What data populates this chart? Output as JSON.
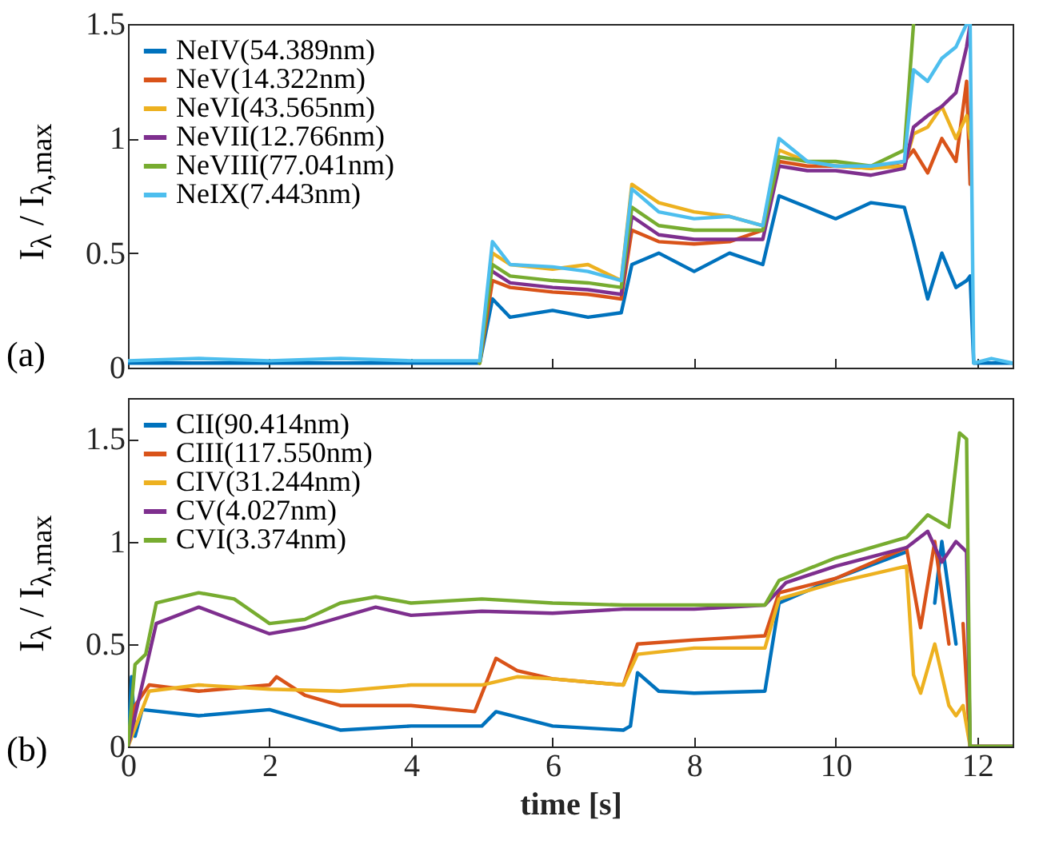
{
  "chart_data": [
    {
      "type": "line",
      "ylabel": "I$_{λ}$ / I$_{λ,max}$",
      "annotations": [
        "(a)"
      ],
      "legend": "top left",
      "grid": false,
      "tick_labels": "y",
      "line_style": "solid",
      "xlim": [
        0,
        12.5
      ],
      "xticks": [
        0,
        2,
        4,
        6,
        8,
        10,
        12
      ],
      "ylim": [
        0,
        1.5
      ],
      "yticks": [
        0,
        0.5,
        1,
        1.5
      ],
      "x": [
        0,
        1,
        2,
        3,
        4,
        4.97,
        5.15,
        5.4,
        6,
        6.5,
        6.97,
        7.12,
        7.5,
        8,
        8.5,
        8.97,
        9.2,
        9.6,
        10,
        10.5,
        10.97,
        11.1,
        11.3,
        11.5,
        11.7,
        11.85,
        11.9,
        11.95,
        12.2,
        12.5
      ],
      "series": [
        {
          "name": "NeIV(54.389nm)",
          "color": "#0072bd",
          "values": [
            0.02,
            0.02,
            0.02,
            0.02,
            0.02,
            0.02,
            0.3,
            0.22,
            0.25,
            0.22,
            0.24,
            0.45,
            0.5,
            0.42,
            0.5,
            0.45,
            0.75,
            0.7,
            0.65,
            0.72,
            0.7,
            0.55,
            0.3,
            0.5,
            0.35,
            0.38,
            0.4,
            0.02,
            0.02,
            0.02
          ]
        },
        {
          "name": "NeV(14.322nm)",
          "color": "#d95319",
          "values": [
            null,
            null,
            null,
            null,
            null,
            0.02,
            0.38,
            0.35,
            0.33,
            0.32,
            0.3,
            0.6,
            0.55,
            0.54,
            0.55,
            0.6,
            0.9,
            0.88,
            0.88,
            0.87,
            0.9,
            0.95,
            0.85,
            1.0,
            0.9,
            1.25,
            0.8,
            null,
            null,
            null
          ]
        },
        {
          "name": "NeVI(43.565nm)",
          "color": "#edb120",
          "values": [
            null,
            null,
            null,
            null,
            null,
            0.02,
            0.5,
            0.45,
            0.43,
            0.45,
            0.38,
            0.8,
            0.72,
            0.68,
            0.66,
            0.62,
            0.95,
            0.9,
            0.88,
            0.87,
            0.88,
            1.02,
            1.05,
            1.14,
            1.0,
            1.1,
            1.0,
            null,
            null,
            null
          ]
        },
        {
          "name": "NeVII(12.766nm)",
          "color": "#7e2f8e",
          "values": [
            null,
            null,
            null,
            null,
            null,
            null,
            0.42,
            0.37,
            0.35,
            0.34,
            0.32,
            0.66,
            0.58,
            0.56,
            0.56,
            0.56,
            0.88,
            0.86,
            0.86,
            0.84,
            0.87,
            1.05,
            1.1,
            1.14,
            1.2,
            1.4,
            1.5,
            null,
            null,
            null
          ]
        },
        {
          "name": "NeVIII(77.041nm)",
          "color": "#77ac30",
          "values": [
            null,
            null,
            null,
            null,
            null,
            0.02,
            0.45,
            0.4,
            0.38,
            0.37,
            0.35,
            0.7,
            0.62,
            0.6,
            0.6,
            0.6,
            0.92,
            0.9,
            0.9,
            0.88,
            0.95,
            1.5,
            null,
            null,
            null,
            null,
            null,
            null,
            null,
            null
          ]
        },
        {
          "name": "NeIX(7.443nm)",
          "color": "#4dbeee",
          "values": [
            0.03,
            0.04,
            0.03,
            0.04,
            0.03,
            0.03,
            0.55,
            0.45,
            0.44,
            0.42,
            0.38,
            0.78,
            0.68,
            0.65,
            0.66,
            0.62,
            1.0,
            0.9,
            0.88,
            0.88,
            0.9,
            1.3,
            1.25,
            1.35,
            1.4,
            1.5,
            1.5,
            0.02,
            0.04,
            0.02
          ]
        }
      ]
    },
    {
      "type": "line",
      "xlabel": "time [s]",
      "ylabel": "I$_{λ}$ / I$_{λ,max}$",
      "annotations": [
        "(b)"
      ],
      "legend": "top left",
      "grid": false,
      "line_style": "solid",
      "xlim": [
        0,
        12.5
      ],
      "xticks": [
        0,
        2,
        4,
        6,
        8,
        10,
        12
      ],
      "ylim": [
        0,
        1.7
      ],
      "yticks": [
        0,
        0.5,
        1,
        1.5
      ],
      "series": [
        {
          "name": "CII(90.414nm)",
          "color": "#0072bd",
          "x": [
            0,
            0.05,
            0.1,
            0.2,
            1,
            2,
            3,
            4,
            5,
            5.2,
            6,
            7,
            7.1,
            7.2,
            7.5,
            8,
            9,
            9.2,
            10,
            11,
            11.25,
            11.4,
            11.5,
            11.7,
            11.8,
            11.9,
            12.5
          ],
          "values": [
            0,
            0.34,
            0.05,
            0.18,
            0.15,
            0.18,
            0.08,
            0.1,
            0.1,
            0.17,
            0.1,
            0.08,
            0.1,
            0.36,
            0.27,
            0.26,
            0.27,
            0.7,
            0.82,
            0.95,
            null,
            0.7,
            1.0,
            0.5,
            null,
            0,
            0
          ]
        },
        {
          "name": "CIII(117.550nm)",
          "color": "#d95319",
          "x": [
            0,
            0.1,
            0.3,
            1,
            2,
            2.1,
            2.5,
            3,
            4,
            4.9,
            5.2,
            5.5,
            6,
            7,
            7.2,
            8,
            9,
            9.2,
            10,
            11,
            11.2,
            11.4,
            11.5,
            11.6,
            11.7,
            11.8,
            11.9,
            12.5
          ],
          "values": [
            0,
            0.2,
            0.3,
            0.27,
            0.3,
            0.34,
            0.25,
            0.2,
            0.2,
            0.17,
            0.43,
            0.37,
            0.33,
            0.3,
            0.5,
            0.52,
            0.54,
            0.75,
            0.82,
            0.97,
            0.58,
            1.0,
            0.75,
            0.5,
            null,
            0.6,
            0,
            0
          ]
        },
        {
          "name": "CIV(31.244nm)",
          "color": "#edb120",
          "x": [
            0,
            0.3,
            1,
            2,
            3,
            4,
            5,
            5.5,
            6,
            7,
            7.2,
            8,
            9,
            9.2,
            10,
            11,
            11.1,
            11.2,
            11.4,
            11.6,
            11.7,
            11.8,
            11.9,
            12.5
          ],
          "values": [
            0,
            0.27,
            0.3,
            0.28,
            0.27,
            0.3,
            0.3,
            0.34,
            0.33,
            0.3,
            0.45,
            0.48,
            0.48,
            0.72,
            0.8,
            0.88,
            0.35,
            0.26,
            0.5,
            0.2,
            0.15,
            0.2,
            0,
            0
          ]
        },
        {
          "name": "CV(4.027nm)",
          "color": "#7e2f8e",
          "x": [
            0,
            0.2,
            0.4,
            1,
            2,
            2.5,
            3.5,
            4,
            5,
            6,
            7,
            8,
            9,
            9.3,
            10,
            11,
            11.3,
            11.5,
            11.7,
            11.85,
            11.9,
            12.5
          ],
          "values": [
            0,
            0.3,
            0.6,
            0.68,
            0.55,
            0.58,
            0.68,
            0.64,
            0.66,
            0.65,
            0.67,
            0.67,
            0.69,
            0.8,
            0.88,
            0.97,
            1.05,
            0.9,
            1.0,
            0.95,
            0,
            0
          ]
        },
        {
          "name": "CVI(3.374nm)",
          "color": "#77ac30",
          "x": [
            0,
            0.1,
            0.25,
            0.4,
            1,
            1.5,
            2,
            2.5,
            3,
            3.5,
            4,
            5,
            6,
            7,
            8,
            9,
            9.2,
            10,
            11,
            11.3,
            11.6,
            11.75,
            11.85,
            11.9,
            12.5
          ],
          "values": [
            0,
            0.4,
            0.45,
            0.7,
            0.75,
            0.72,
            0.6,
            0.62,
            0.7,
            0.73,
            0.7,
            0.72,
            0.7,
            0.69,
            0.69,
            0.69,
            0.81,
            0.92,
            1.02,
            1.13,
            1.07,
            1.53,
            1.5,
            0,
            0
          ]
        }
      ]
    }
  ]
}
